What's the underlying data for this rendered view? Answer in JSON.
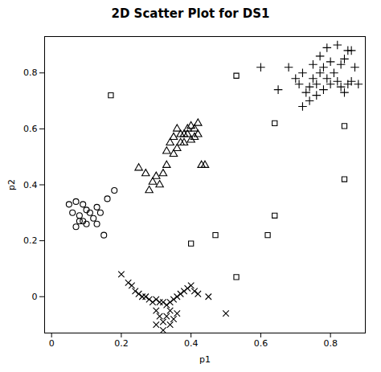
{
  "chart_data": {
    "type": "scatter",
    "title": "2D Scatter Plot for DS1",
    "xlabel": "p1",
    "ylabel": "p2",
    "xlim": [
      -0.02,
      0.9
    ],
    "ylim": [
      -0.13,
      0.93
    ],
    "xticks": [
      0.0,
      0.2,
      0.4,
      0.6,
      0.8
    ],
    "yticks": [
      0.0,
      0.2,
      0.4,
      0.6,
      0.8
    ],
    "grid": false,
    "series": [
      {
        "marker": "circle",
        "color": "black",
        "values": [
          [
            0.05,
            0.33
          ],
          [
            0.06,
            0.3
          ],
          [
            0.07,
            0.34
          ],
          [
            0.08,
            0.27
          ],
          [
            0.09,
            0.33
          ],
          [
            0.1,
            0.31
          ],
          [
            0.11,
            0.3
          ],
          [
            0.12,
            0.28
          ],
          [
            0.13,
            0.32
          ],
          [
            0.14,
            0.3
          ],
          [
            0.09,
            0.27
          ],
          [
            0.1,
            0.26
          ],
          [
            0.08,
            0.29
          ],
          [
            0.13,
            0.26
          ],
          [
            0.07,
            0.25
          ],
          [
            0.15,
            0.22
          ],
          [
            0.16,
            0.35
          ],
          [
            0.18,
            0.38
          ]
        ]
      },
      {
        "marker": "triangle",
        "color": "black",
        "values": [
          [
            0.25,
            0.46
          ],
          [
            0.27,
            0.44
          ],
          [
            0.28,
            0.38
          ],
          [
            0.29,
            0.41
          ],
          [
            0.3,
            0.43
          ],
          [
            0.31,
            0.4
          ],
          [
            0.32,
            0.44
          ],
          [
            0.33,
            0.47
          ],
          [
            0.33,
            0.52
          ],
          [
            0.34,
            0.55
          ],
          [
            0.35,
            0.57
          ],
          [
            0.36,
            0.6
          ],
          [
            0.37,
            0.58
          ],
          [
            0.38,
            0.55
          ],
          [
            0.39,
            0.58
          ],
          [
            0.4,
            0.61
          ],
          [
            0.41,
            0.57
          ],
          [
            0.42,
            0.62
          ],
          [
            0.36,
            0.53
          ],
          [
            0.35,
            0.51
          ],
          [
            0.37,
            0.55
          ],
          [
            0.38,
            0.58
          ],
          [
            0.39,
            0.6
          ],
          [
            0.4,
            0.56
          ],
          [
            0.41,
            0.6
          ],
          [
            0.42,
            0.58
          ],
          [
            0.43,
            0.47
          ],
          [
            0.44,
            0.47
          ]
        ]
      },
      {
        "marker": "plus",
        "color": "black",
        "values": [
          [
            0.6,
            0.82
          ],
          [
            0.65,
            0.74
          ],
          [
            0.68,
            0.82
          ],
          [
            0.7,
            0.78
          ],
          [
            0.71,
            0.76
          ],
          [
            0.72,
            0.8
          ],
          [
            0.73,
            0.73
          ],
          [
            0.74,
            0.75
          ],
          [
            0.75,
            0.78
          ],
          [
            0.76,
            0.76
          ],
          [
            0.77,
            0.8
          ],
          [
            0.78,
            0.82
          ],
          [
            0.79,
            0.78
          ],
          [
            0.8,
            0.84
          ],
          [
            0.81,
            0.8
          ],
          [
            0.82,
            0.77
          ],
          [
            0.83,
            0.83
          ],
          [
            0.84,
            0.85
          ],
          [
            0.85,
            0.88
          ],
          [
            0.83,
            0.75
          ],
          [
            0.8,
            0.76
          ],
          [
            0.78,
            0.74
          ],
          [
            0.76,
            0.72
          ],
          [
            0.74,
            0.7
          ],
          [
            0.72,
            0.68
          ],
          [
            0.75,
            0.83
          ],
          [
            0.77,
            0.86
          ],
          [
            0.79,
            0.89
          ],
          [
            0.82,
            0.9
          ],
          [
            0.86,
            0.88
          ],
          [
            0.87,
            0.82
          ],
          [
            0.86,
            0.77
          ],
          [
            0.85,
            0.76
          ],
          [
            0.84,
            0.73
          ],
          [
            0.88,
            0.76
          ]
        ]
      },
      {
        "marker": "x",
        "color": "black",
        "values": [
          [
            0.2,
            0.08
          ],
          [
            0.22,
            0.05
          ],
          [
            0.23,
            0.04
          ],
          [
            0.24,
            0.02
          ],
          [
            0.25,
            0.01
          ],
          [
            0.26,
            0.0
          ],
          [
            0.27,
            0.0
          ],
          [
            0.28,
            -0.01
          ],
          [
            0.29,
            -0.02
          ],
          [
            0.3,
            -0.01
          ],
          [
            0.31,
            -0.02
          ],
          [
            0.32,
            -0.02
          ],
          [
            0.33,
            -0.03
          ],
          [
            0.34,
            -0.02
          ],
          [
            0.35,
            -0.01
          ],
          [
            0.36,
            0.0
          ],
          [
            0.37,
            0.01
          ],
          [
            0.38,
            0.02
          ],
          [
            0.39,
            0.03
          ],
          [
            0.4,
            0.04
          ],
          [
            0.41,
            0.02
          ],
          [
            0.42,
            0.01
          ],
          [
            0.3,
            -0.05
          ],
          [
            0.31,
            -0.07
          ],
          [
            0.32,
            -0.09
          ],
          [
            0.33,
            -0.07
          ],
          [
            0.34,
            -0.05
          ],
          [
            0.35,
            -0.08
          ],
          [
            0.36,
            -0.06
          ],
          [
            0.3,
            -0.1
          ],
          [
            0.32,
            -0.12
          ],
          [
            0.34,
            -0.1
          ],
          [
            0.45,
            0.0
          ],
          [
            0.5,
            -0.06
          ]
        ]
      },
      {
        "marker": "square",
        "color": "black",
        "values": [
          [
            0.17,
            0.72
          ],
          [
            0.53,
            0.79
          ],
          [
            0.53,
            0.07
          ],
          [
            0.4,
            0.19
          ],
          [
            0.47,
            0.22
          ],
          [
            0.62,
            0.22
          ],
          [
            0.64,
            0.29
          ],
          [
            0.64,
            0.62
          ],
          [
            0.84,
            0.42
          ],
          [
            0.84,
            0.61
          ]
        ]
      }
    ]
  }
}
